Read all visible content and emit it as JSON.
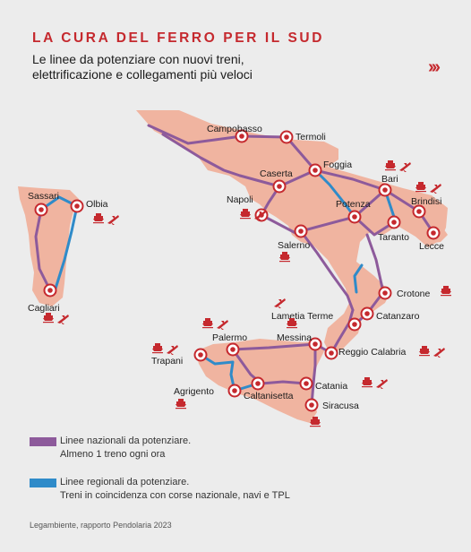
{
  "header": {
    "title": "LA CURA DEL FERRO PER IL SUD",
    "subtitle_line1": "Le linee da potenziare con nuovi treni,",
    "subtitle_line2": "elettrificazione e collegamenti più veloci",
    "arrows": "›››"
  },
  "colors": {
    "accent": "#c5292e",
    "land": "#f0b4a0",
    "national_line": "#8d5a9b",
    "regional_line": "#2f8bc9",
    "background": "#ececec"
  },
  "cities": [
    {
      "name": "Campobasso",
      "icons": []
    },
    {
      "name": "Termoli",
      "icons": []
    },
    {
      "name": "Foggia",
      "icons": []
    },
    {
      "name": "Caserta",
      "icons": []
    },
    {
      "name": "Napoli",
      "icons": [
        "ferry-icon",
        "plane-icon"
      ]
    },
    {
      "name": "Bari",
      "icons": [
        "ferry-icon",
        "plane-icon"
      ]
    },
    {
      "name": "Brindisi",
      "icons": [
        "ferry-icon",
        "plane-icon"
      ]
    },
    {
      "name": "Potenza",
      "icons": []
    },
    {
      "name": "Taranto",
      "icons": []
    },
    {
      "name": "Lecce",
      "icons": []
    },
    {
      "name": "Salerno",
      "icons": [
        "ferry-icon"
      ]
    },
    {
      "name": "Sassari",
      "icons": []
    },
    {
      "name": "Olbia",
      "icons": [
        "ferry-icon",
        "plane-icon"
      ]
    },
    {
      "name": "Cagliari",
      "icons": [
        "ferry-icon",
        "plane-icon"
      ]
    },
    {
      "name": "Crotone",
      "icons": [
        "ferry-icon"
      ]
    },
    {
      "name": "Lametia Terme",
      "icons": [
        "plane-icon"
      ]
    },
    {
      "name": "Catanzaro",
      "icons": []
    },
    {
      "name": "Palermo",
      "icons": [
        "ferry-icon",
        "plane-icon"
      ]
    },
    {
      "name": "Messina",
      "icons": [
        "ferry-icon"
      ]
    },
    {
      "name": "Reggio Calabria",
      "icons": [
        "ferry-icon",
        "plane-icon"
      ]
    },
    {
      "name": "Trapani",
      "icons": [
        "ferry-icon",
        "plane-icon"
      ]
    },
    {
      "name": "Agrigento",
      "icons": [
        "ferry-icon"
      ]
    },
    {
      "name": "Caltanisetta",
      "icons": []
    },
    {
      "name": "Catania",
      "icons": [
        "ferry-icon",
        "plane-icon"
      ]
    },
    {
      "name": "Siracusa",
      "icons": [
        "ferry-icon"
      ]
    }
  ],
  "legend": {
    "national_line1": "Linee nazionali da potenziare.",
    "national_line2": "Almeno 1 treno ogni ora",
    "regional_line1": "Linee regionali da potenziare.",
    "regional_line2": "Treni in coincidenza con corse nazionale, navi e TPL"
  },
  "source": "Legambiente, rapporto Pendolaria 2023"
}
